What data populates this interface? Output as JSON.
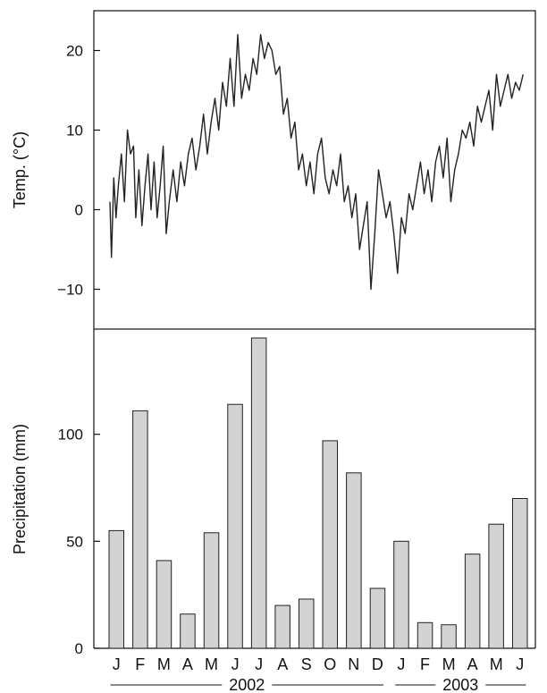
{
  "chart_data": [
    {
      "type": "line",
      "ylabel": "Temp. (°C)",
      "ylim": [
        -15,
        25
      ],
      "yticks": [
        -10,
        0,
        10,
        20
      ],
      "grid": false,
      "x_range": [
        "2002-01-01",
        "2003-06-30"
      ],
      "series": [
        {
          "x": [
            "2002-01-01",
            "2002-01-03",
            "2002-01-06",
            "2002-01-09",
            "2002-01-12",
            "2002-01-16",
            "2002-01-20",
            "2002-01-24",
            "2002-01-28",
            "2002-02-01",
            "2002-02-04",
            "2002-02-08",
            "2002-02-12",
            "2002-02-16",
            "2002-02-20",
            "2002-02-24",
            "2002-02-28",
            "2002-03-04",
            "2002-03-08",
            "2002-03-12",
            "2002-03-16",
            "2002-03-20",
            "2002-03-25",
            "2002-03-30",
            "2002-04-04",
            "2002-04-09",
            "2002-04-14",
            "2002-04-19",
            "2002-04-24",
            "2002-04-29",
            "2002-05-04",
            "2002-05-09",
            "2002-05-14",
            "2002-05-19",
            "2002-05-24",
            "2002-05-29",
            "2002-06-03",
            "2002-06-08",
            "2002-06-13",
            "2002-06-18",
            "2002-06-23",
            "2002-06-28",
            "2002-07-03",
            "2002-07-08",
            "2002-07-13",
            "2002-07-18",
            "2002-07-23",
            "2002-07-28",
            "2002-08-02",
            "2002-08-07",
            "2002-08-12",
            "2002-08-17",
            "2002-08-22",
            "2002-08-27",
            "2002-09-01",
            "2002-09-06",
            "2002-09-11",
            "2002-09-16",
            "2002-09-21",
            "2002-09-26",
            "2002-10-01",
            "2002-10-06",
            "2002-10-11",
            "2002-10-16",
            "2002-10-21",
            "2002-10-26",
            "2002-10-31",
            "2002-11-05",
            "2002-11-10",
            "2002-11-15",
            "2002-11-20",
            "2002-11-25",
            "2002-11-30",
            "2002-12-05",
            "2002-12-10",
            "2002-12-15",
            "2002-12-20",
            "2002-12-25",
            "2002-12-30",
            "2003-01-04",
            "2003-01-09",
            "2003-01-14",
            "2003-01-19",
            "2003-01-24",
            "2003-01-29",
            "2003-02-03",
            "2003-02-08",
            "2003-02-13",
            "2003-02-18",
            "2003-02-23",
            "2003-02-28",
            "2003-03-05",
            "2003-03-10",
            "2003-03-15",
            "2003-03-20",
            "2003-03-25",
            "2003-03-30",
            "2003-04-04",
            "2003-04-09",
            "2003-04-14",
            "2003-04-19",
            "2003-04-24",
            "2003-04-29",
            "2003-05-04",
            "2003-05-09",
            "2003-05-14",
            "2003-05-19",
            "2003-05-24",
            "2003-05-29",
            "2003-06-03",
            "2003-06-08",
            "2003-06-13",
            "2003-06-18",
            "2003-06-23",
            "2003-06-28"
          ],
          "y": [
            1,
            -6,
            4,
            -1,
            3,
            7,
            1,
            10,
            7,
            8,
            -1,
            5,
            -2,
            3,
            7,
            0,
            6,
            -1,
            3,
            8,
            -3,
            1,
            5,
            1,
            6,
            3,
            7,
            9,
            5,
            8,
            12,
            7,
            11,
            14,
            10,
            16,
            13,
            19,
            13,
            22,
            14,
            17,
            15,
            19,
            17,
            22,
            19,
            21,
            20,
            17,
            18,
            12,
            14,
            9,
            11,
            5,
            7,
            3,
            6,
            2,
            7,
            9,
            4,
            2,
            5,
            3,
            7,
            1,
            3,
            -1,
            2,
            -5,
            -2,
            1,
            -10,
            -3,
            5,
            2,
            -1,
            1,
            -3,
            -8,
            -1,
            -3,
            2,
            0,
            3,
            6,
            2,
            5,
            1,
            6,
            8,
            4,
            9,
            1,
            5,
            7,
            10,
            9,
            11,
            8,
            13,
            11,
            13,
            15,
            10,
            17,
            13,
            15,
            17,
            14,
            16,
            15,
            17
          ]
        }
      ]
    },
    {
      "type": "bar",
      "ylabel": "Precipitation (mm)",
      "ylim": [
        0,
        145
      ],
      "yticks": [
        0,
        50,
        100
      ],
      "grid": false,
      "categories": [
        "J",
        "F",
        "M",
        "A",
        "M",
        "J",
        "J",
        "A",
        "S",
        "O",
        "N",
        "D",
        "J",
        "F",
        "M",
        "A",
        "M",
        "J"
      ],
      "values": [
        55,
        111,
        41,
        16,
        54,
        114,
        145,
        20,
        23,
        97,
        82,
        28,
        50,
        12,
        11,
        44,
        58,
        70
      ],
      "year_groups": [
        {
          "label": "2002",
          "from": 0,
          "to": 11
        },
        {
          "label": "2003",
          "from": 12,
          "to": 17
        }
      ],
      "bar_color": "#d3d3d3"
    }
  ]
}
